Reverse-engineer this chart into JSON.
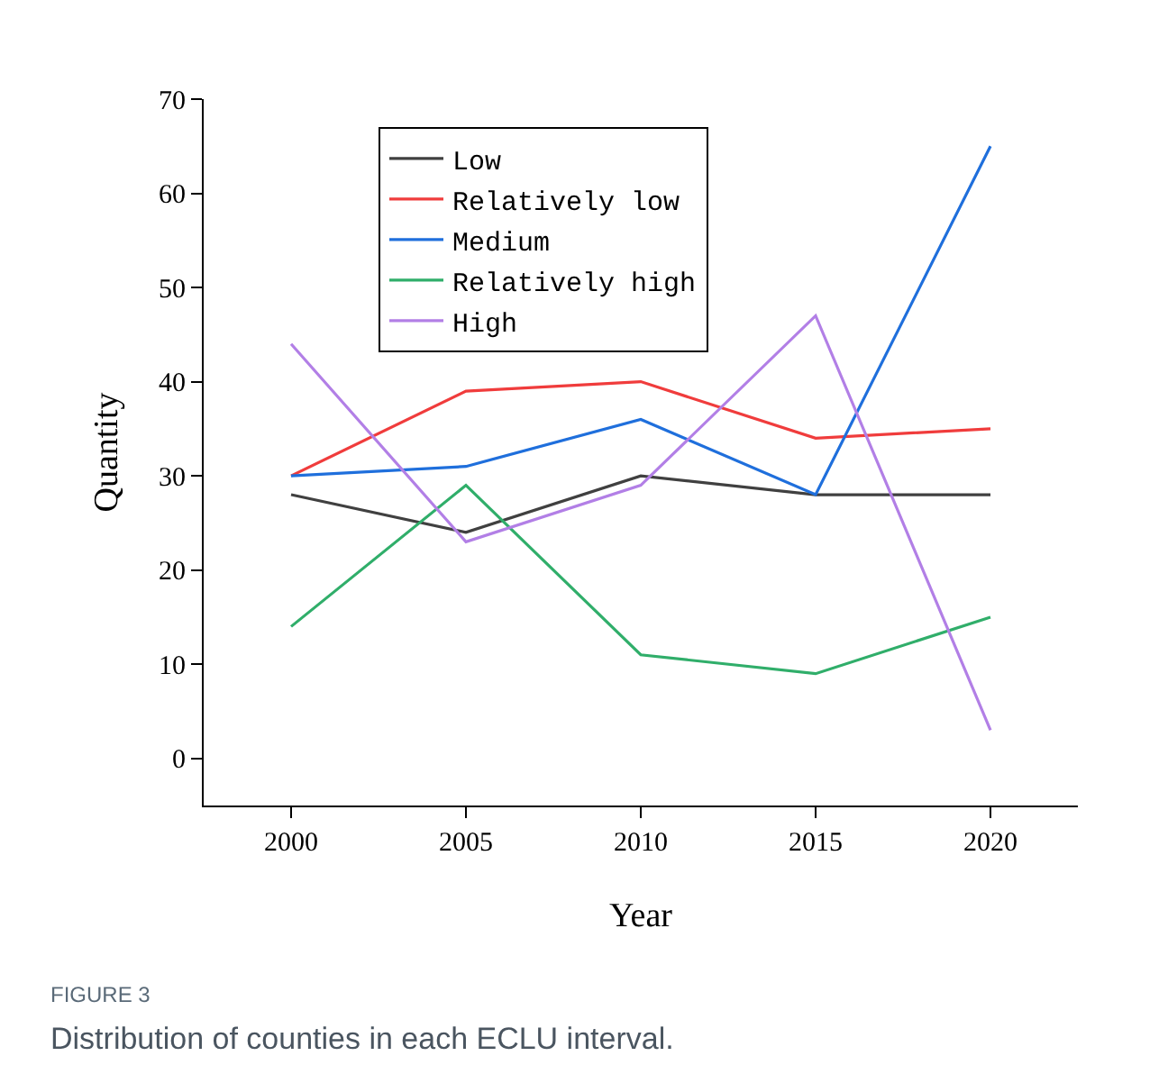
{
  "chart_data": {
    "type": "line",
    "xlabel": "Year",
    "ylabel": "Quantity",
    "x": [
      2000,
      2005,
      2010,
      2015,
      2020
    ],
    "xlim": [
      1997.5,
      2022.5
    ],
    "xticks": [
      2000,
      2005,
      2010,
      2015,
      2020
    ],
    "ylim": [
      -5,
      70
    ],
    "yticks": [
      0,
      10,
      20,
      30,
      40,
      50,
      60,
      70
    ],
    "grid": false,
    "legend": "top left",
    "marker": "none",
    "line_style": "solid",
    "series": [
      {
        "name": "Low",
        "color": "#404040",
        "values": [
          28,
          24,
          30,
          28,
          28
        ]
      },
      {
        "name": "Relatively low",
        "color": "#f03c3c",
        "values": [
          30,
          39,
          40,
          34,
          35
        ]
      },
      {
        "name": "Medium",
        "color": "#1f6fdc",
        "values": [
          30,
          31,
          36,
          28,
          65
        ]
      },
      {
        "name": "Relatively high",
        "color": "#30ae6a",
        "values": [
          14,
          29,
          11,
          9,
          15
        ]
      },
      {
        "name": "High",
        "color": "#b27fe6",
        "values": [
          44,
          23,
          29,
          47,
          3
        ]
      }
    ],
    "annotations": [
      "FIGURE 3",
      "Distribution of counties in each ECLU interval."
    ]
  }
}
